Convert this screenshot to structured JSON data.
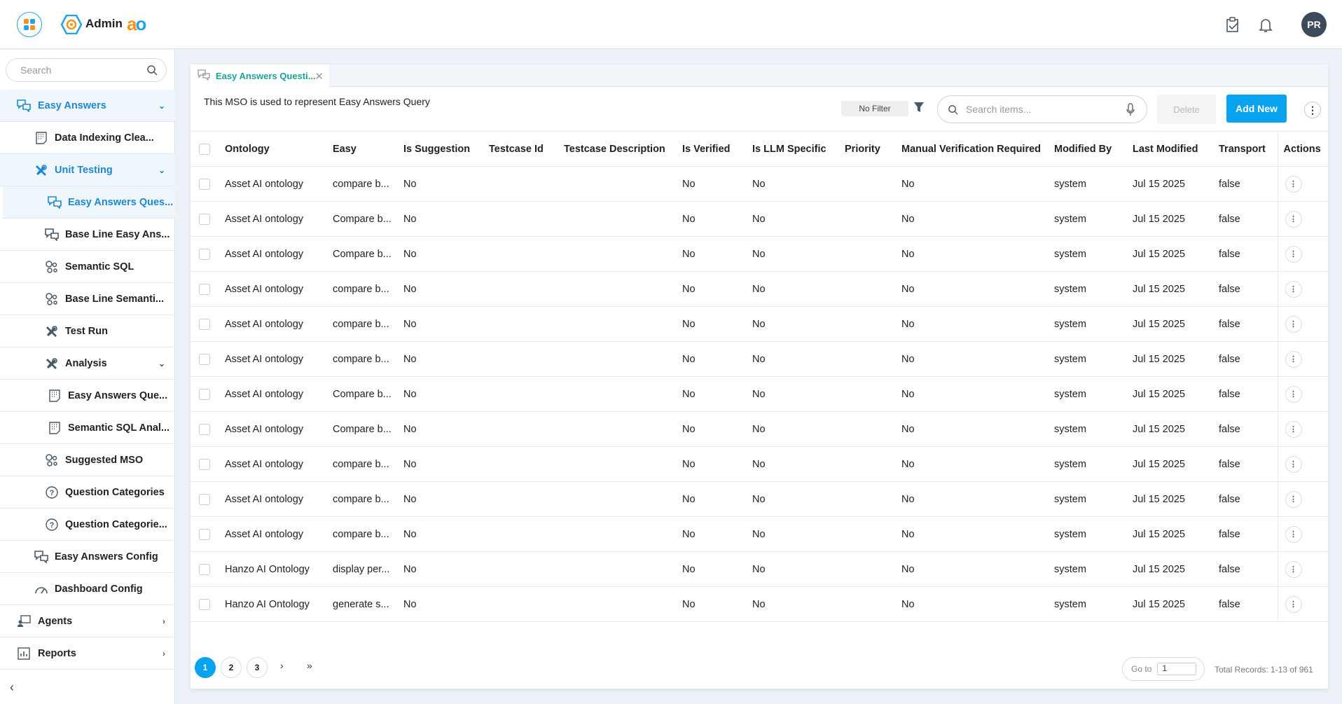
{
  "header": {
    "app_title": "Admin",
    "brand_text": "ao",
    "avatar_initials": "PR",
    "icons": [
      "app-logo-icon",
      "admin-gear-icon",
      "clipboard-check-icon",
      "bell-icon"
    ]
  },
  "sidebar": {
    "search_placeholder": "Search",
    "items": [
      {
        "label": "Easy Answers",
        "level": 0,
        "selected": true,
        "chevron": "down",
        "icon": "chat-icon"
      },
      {
        "label": "Data Indexing Clea...",
        "level": 1,
        "icon": "document-icon"
      },
      {
        "label": "Unit Testing",
        "level": 1,
        "selected": true,
        "chevron": "down",
        "icon": "tools-icon"
      },
      {
        "label": "Easy Answers Ques...",
        "level": 2,
        "selected": true,
        "icon": "chat-icon"
      },
      {
        "label": "Base Line Easy Ans...",
        "level": 2,
        "icon": "chat-icon"
      },
      {
        "label": "Semantic SQL",
        "level": 2,
        "icon": "nodes-icon"
      },
      {
        "label": "Base Line Semanti...",
        "level": 2,
        "icon": "nodes-icon"
      },
      {
        "label": "Test Run",
        "level": 2,
        "icon": "tools-icon"
      },
      {
        "label": "Analysis",
        "level": 2,
        "chevron": "down",
        "icon": "tools-icon"
      },
      {
        "label": "Easy Answers Que...",
        "level": 3,
        "icon": "document-icon"
      },
      {
        "label": "Semantic SQL Anal...",
        "level": 3,
        "icon": "document-icon"
      },
      {
        "label": "Suggested MSO",
        "level": 2,
        "icon": "nodes-icon"
      },
      {
        "label": "Question Categories",
        "level": 2,
        "icon": "question-icon"
      },
      {
        "label": "Question Categorie...",
        "level": 2,
        "icon": "question-icon"
      },
      {
        "label": "Easy Answers Config",
        "level": 1,
        "icon": "chat-icon"
      },
      {
        "label": "Dashboard Config",
        "level": 1,
        "icon": "gauge-icon"
      },
      {
        "label": "Agents",
        "level": 0,
        "chevron": "right",
        "icon": "agents-icon"
      },
      {
        "label": "Reports",
        "level": 0,
        "chevron": "right",
        "icon": "reports-icon"
      }
    ]
  },
  "main": {
    "tab_label": "Easy Answers Questi...",
    "description": "This MSO is used to represent Easy Answers Query",
    "filter_label": "No Filter",
    "search_placeholder": "Search items...",
    "delete_label": "Delete",
    "add_label": "Add New",
    "accent_color": "#08a3ef",
    "columns": [
      "Ontology",
      "Easy",
      "Is Suggestion",
      "Testcase Id",
      "Testcase Description",
      "Is Verified",
      "Is LLM Specific",
      "Priority",
      "Manual Verification Required",
      "Modified By",
      "Last Modified",
      "Transport",
      "Actions"
    ],
    "rows": [
      [
        "Asset AI ontology",
        "compare b...",
        "No",
        "",
        "",
        "No",
        "No",
        "",
        "No",
        "system",
        "Jul 15 2025",
        "false"
      ],
      [
        "Asset AI ontology",
        "Compare b...",
        "No",
        "",
        "",
        "No",
        "No",
        "",
        "No",
        "system",
        "Jul 15 2025",
        "false"
      ],
      [
        "Asset AI ontology",
        "Compare b...",
        "No",
        "",
        "",
        "No",
        "No",
        "",
        "No",
        "system",
        "Jul 15 2025",
        "false"
      ],
      [
        "Asset AI ontology",
        "compare b...",
        "No",
        "",
        "",
        "No",
        "No",
        "",
        "No",
        "system",
        "Jul 15 2025",
        "false"
      ],
      [
        "Asset AI ontology",
        "compare b...",
        "No",
        "",
        "",
        "No",
        "No",
        "",
        "No",
        "system",
        "Jul 15 2025",
        "false"
      ],
      [
        "Asset AI ontology",
        "compare b...",
        "No",
        "",
        "",
        "No",
        "No",
        "",
        "No",
        "system",
        "Jul 15 2025",
        "false"
      ],
      [
        "Asset AI ontology",
        "Compare b...",
        "No",
        "",
        "",
        "No",
        "No",
        "",
        "No",
        "system",
        "Jul 15 2025",
        "false"
      ],
      [
        "Asset AI ontology",
        "Compare b...",
        "No",
        "",
        "",
        "No",
        "No",
        "",
        "No",
        "system",
        "Jul 15 2025",
        "false"
      ],
      [
        "Asset AI ontology",
        "compare b...",
        "No",
        "",
        "",
        "No",
        "No",
        "",
        "No",
        "system",
        "Jul 15 2025",
        "false"
      ],
      [
        "Asset AI ontology",
        "compare b...",
        "No",
        "",
        "",
        "No",
        "No",
        "",
        "No",
        "system",
        "Jul 15 2025",
        "false"
      ],
      [
        "Asset AI ontology",
        "compare b...",
        "No",
        "",
        "",
        "No",
        "No",
        "",
        "No",
        "system",
        "Jul 15 2025",
        "false"
      ],
      [
        "Hanzo AI Ontology",
        "display per...",
        "No",
        "",
        "",
        "No",
        "No",
        "",
        "No",
        "system",
        "Jul 15 2025",
        "false"
      ],
      [
        "Hanzo AI Ontology",
        "generate s...",
        "No",
        "",
        "",
        "No",
        "No",
        "",
        "No",
        "system",
        "Jul 15 2025",
        "false"
      ]
    ],
    "pagination": {
      "pages": [
        "1",
        "2",
        "3"
      ],
      "current": "1",
      "next": "›",
      "last": "»",
      "goto_label": "Go to",
      "goto_value": "1",
      "total": "Total Records: 1-13 of 961"
    }
  }
}
